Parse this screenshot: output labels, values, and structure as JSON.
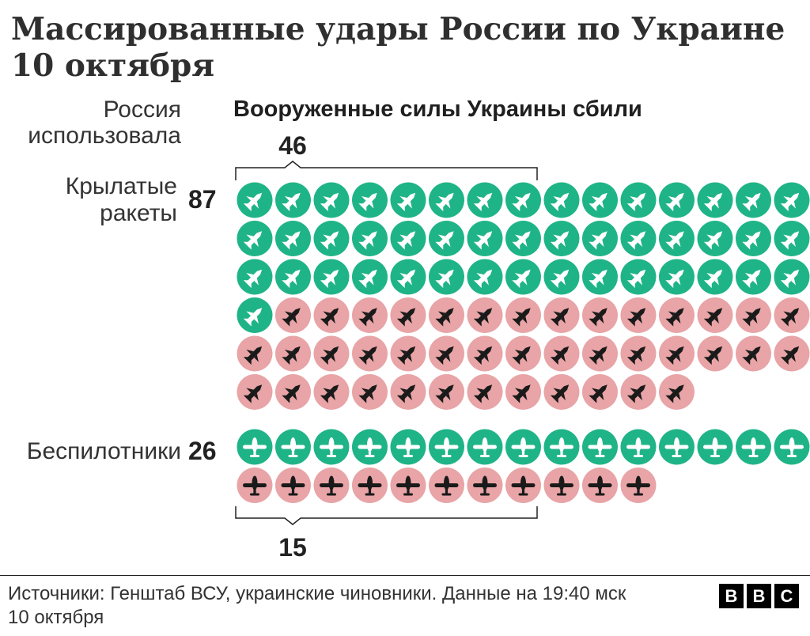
{
  "title_line1": "Массированные удары России по Украине",
  "title_line2": "10 октября",
  "header_used_line1": "Россия",
  "header_used_line2": "использовала",
  "header_shot": "Вооруженные силы Украины сбили",
  "colors": {
    "shot": "#1fb487",
    "not_shot": "#e8a4a6",
    "text": "#222222"
  },
  "chart_data": {
    "type": "waffle",
    "categories": [
      {
        "label_line1": "Крылатые",
        "label_line2": "ракеты",
        "total": 87,
        "shot_down": 46,
        "icon": "cruise-missile-icon",
        "per_row": 15
      },
      {
        "label_line1": "Беспилотники",
        "label_line2": "",
        "total": 26,
        "shot_down": 15,
        "icon": "drone-icon",
        "per_row": 15
      }
    ],
    "bracket_labels": [
      "46",
      "15"
    ]
  },
  "footer": {
    "source_line1": "Источники: Генштаб ВСУ, украинские чиновники. Данные на 19:40 мск",
    "source_line2": "10 октября",
    "logo_letters": [
      "B",
      "B",
      "C"
    ]
  }
}
